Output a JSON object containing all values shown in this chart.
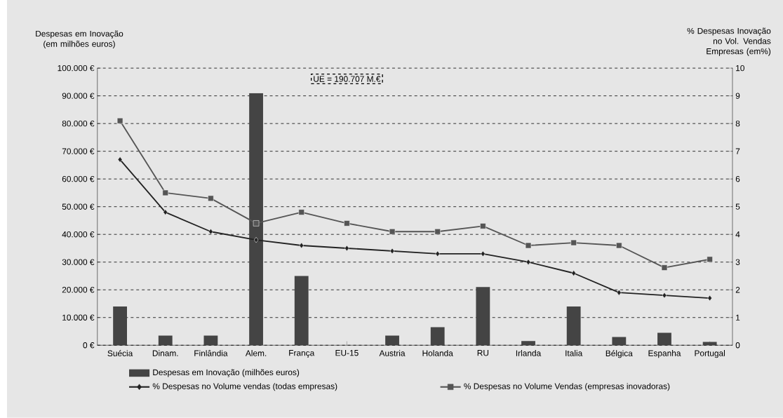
{
  "chart_data": {
    "type": "bar",
    "ylabel": "Despesas em Inovação (em milhões euros)",
    "y2label": "% Despesas Inovação no Vol. Vendas Empresas (em%)",
    "categories": [
      "Suécia",
      "Dinam.",
      "Finlândia",
      "Alem.",
      "França",
      "EU-15",
      "Austria",
      "Holanda",
      "RU",
      "Irlanda",
      "Italia",
      "Bélgica",
      "Espanha",
      "Portugal"
    ],
    "series": [
      {
        "name": "Despesas em Inovação (milhões euros)",
        "color": "#444444",
        "values": [
          14000,
          3500,
          3500,
          91000,
          25000,
          null,
          3500,
          6500,
          21000,
          1500,
          14000,
          3000,
          4500,
          1200
        ]
      },
      {
        "name": "% Despesas no Volume vendas (todas empresas)",
        "type": "line",
        "axis": "y2",
        "marker": "diamond",
        "color": "#222222",
        "values": [
          6.7,
          4.8,
          4.1,
          3.8,
          3.6,
          3.5,
          3.4,
          3.3,
          3.3,
          3.0,
          2.6,
          1.9,
          1.8,
          1.7
        ]
      },
      {
        "name": "% Despesas no Volume Vendas (empresas inovadoras)",
        "type": "line",
        "axis": "y2",
        "marker": "square",
        "color": "#555555",
        "values": [
          8.1,
          5.5,
          5.3,
          4.4,
          4.8,
          4.4,
          4.1,
          4.1,
          4.3,
          3.6,
          3.7,
          3.6,
          2.8,
          3.1
        ]
      }
    ],
    "ylim": [
      0,
      100000
    ],
    "yticks": [
      {
        "value": 0,
        "label": "0 €"
      },
      {
        "value": 10000,
        "label": "10.000 €"
      },
      {
        "value": 20000,
        "label": "20.000 €"
      },
      {
        "value": 30000,
        "label": "30.000 €"
      },
      {
        "value": 40000,
        "label": "40.000 €"
      },
      {
        "value": 50000,
        "label": "50.000 €"
      },
      {
        "value": 60000,
        "label": "60.000 €"
      },
      {
        "value": 70000,
        "label": "70.000 €"
      },
      {
        "value": 80000,
        "label": "80.000 €"
      },
      {
        "value": 90000,
        "label": "90.000 €"
      },
      {
        "value": 100000,
        "label": "100.000 €"
      }
    ],
    "y2lim": [
      0,
      10
    ],
    "y2ticks": [
      0,
      1,
      2,
      3,
      4,
      5,
      6,
      7,
      8,
      9,
      10
    ],
    "grid": "y",
    "legend": "bottom",
    "annotations": [
      "UE = 190.707 M.€"
    ]
  }
}
